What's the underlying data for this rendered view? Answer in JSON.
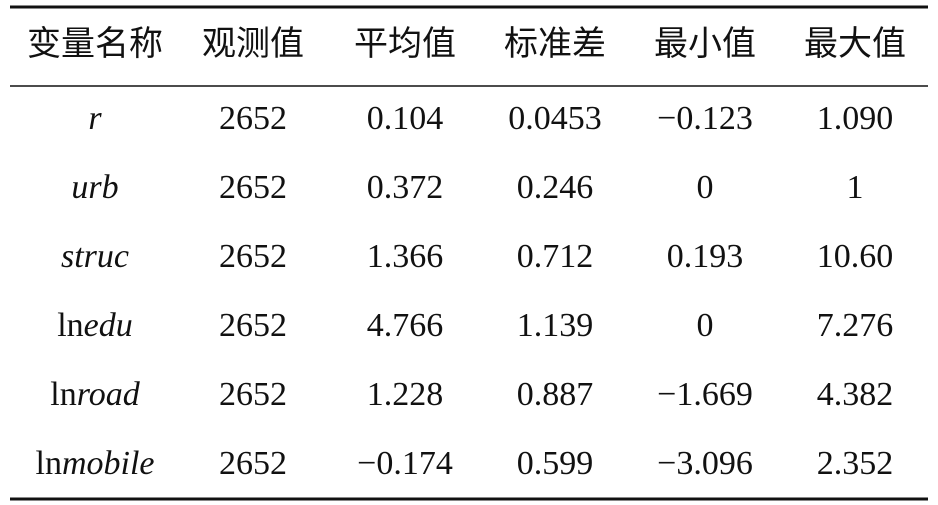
{
  "table": {
    "header": [
      "变量名称",
      "观测值",
      "平均值",
      "标准差",
      "最小值",
      "最大值"
    ],
    "rows": [
      [
        {
          "name": "r"
        },
        "2652",
        "0.104",
        "0.0453",
        "−0.123",
        "1.090"
      ],
      [
        {
          "name": "urb"
        },
        "2652",
        "0.372",
        "0.246",
        "0",
        "1"
      ],
      [
        {
          "name": "struc"
        },
        "2652",
        "1.366",
        "0.712",
        "0.193",
        "10.60"
      ],
      [
        {
          "prefix": "ln",
          "name": "edu"
        },
        "2652",
        "4.766",
        "1.139",
        "0",
        "7.276"
      ],
      [
        {
          "prefix": "ln",
          "name": "road"
        },
        "2652",
        "1.228",
        "0.887",
        "−1.669",
        "4.382"
      ],
      [
        {
          "prefix": "ln",
          "name": "mobile"
        },
        "2652",
        "−0.174",
        "0.599",
        "−3.096",
        "2.352"
      ]
    ]
  }
}
